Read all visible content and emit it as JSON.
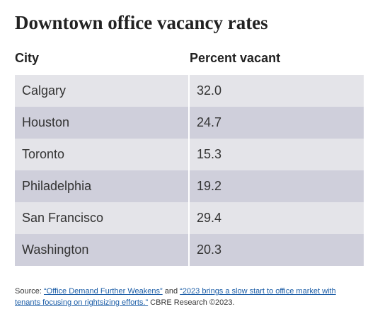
{
  "chart_data": {
    "type": "table",
    "title": "Downtown office vacancy rates",
    "columns": [
      "City",
      "Percent vacant"
    ],
    "categories": [
      "Calgary",
      "Houston",
      "Toronto",
      "Philadelphia",
      "San Francisco",
      "Washington"
    ],
    "rows": [
      {
        "city": "Calgary",
        "value": "32.0"
      },
      {
        "city": "Houston",
        "value": "24.7"
      },
      {
        "city": "Toronto",
        "value": "15.3"
      },
      {
        "city": "Philadelphia",
        "value": "19.2"
      },
      {
        "city": "San Francisco",
        "value": "29.4"
      },
      {
        "city": "Washington",
        "value": "20.3"
      }
    ]
  },
  "colors": {
    "row_light": "#e4e4e9",
    "row_dark": "#cfcfdb",
    "link": "#1a5ca6"
  },
  "source": {
    "prefix": "Source: ",
    "link1": "“Office Demand Further Weakens”",
    "middle": " and ",
    "link2": "“2023 brings a slow start to office market with tenants focusing on rightsizing efforts.”",
    "suffix": " CBRE Research ©2023."
  }
}
